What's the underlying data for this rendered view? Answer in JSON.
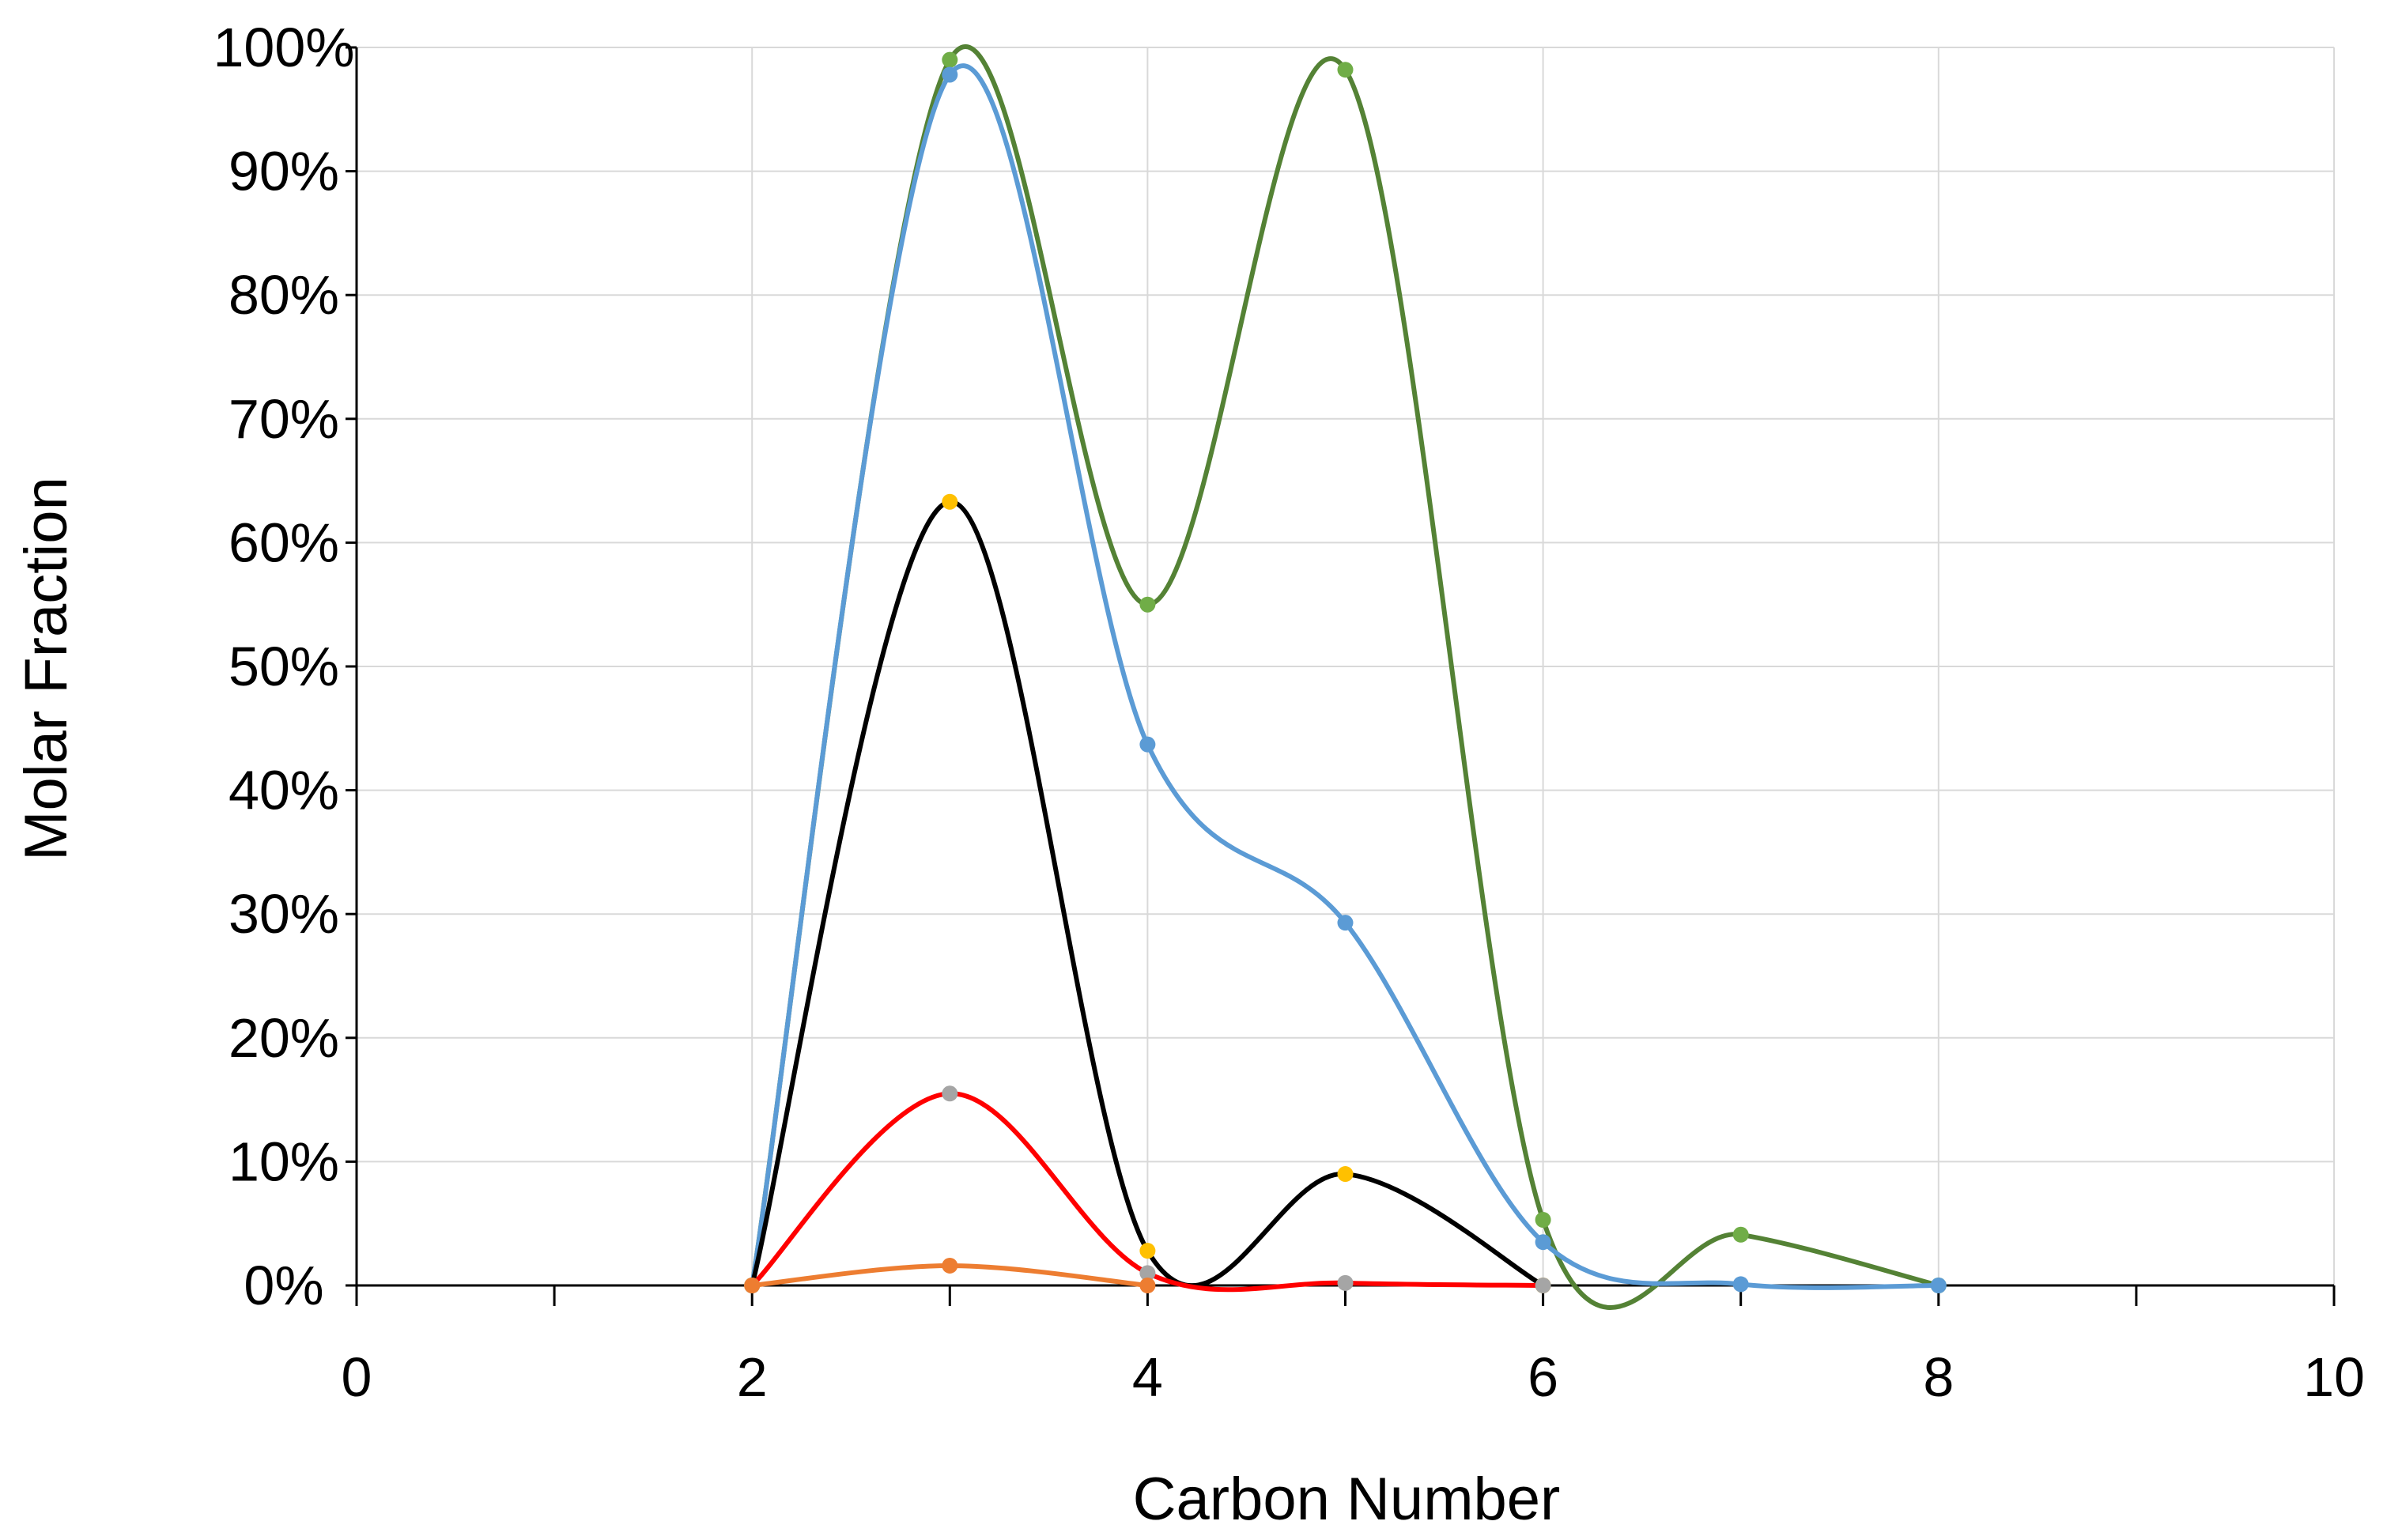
{
  "chart_data": {
    "type": "line",
    "title": "",
    "xlabel": "Carbon Number",
    "ylabel": "Molar Fraction",
    "xlim": [
      0,
      10
    ],
    "ylim": [
      0,
      100
    ],
    "x_ticks": [
      "0",
      "2",
      "4",
      "6",
      "8",
      "10"
    ],
    "y_ticks": [
      "0%",
      "10%",
      "20%",
      "30%",
      "40%",
      "50%",
      "60%",
      "70%",
      "80%",
      "90%",
      "100%"
    ],
    "grid": true,
    "legend": "none",
    "smooth": true,
    "series": [
      {
        "color": "#548235",
        "marker_color": "#70AD47",
        "x": [
          2,
          3,
          4,
          5,
          6,
          7,
          8
        ],
        "values": [
          0,
          99,
          55,
          98.2,
          5.3,
          4.1,
          0
        ]
      },
      {
        "color": "#5B9BD5",
        "marker_color": "#5B9BD5",
        "x": [
          2,
          3,
          4,
          5,
          6,
          7,
          8
        ],
        "values": [
          0,
          97.8,
          43.7,
          29.3,
          3.5,
          0.1,
          0
        ]
      },
      {
        "color": "#000000",
        "marker_color": "#FFC000",
        "x": [
          2,
          3,
          4,
          5,
          6
        ],
        "values": [
          0,
          63.3,
          2.8,
          9,
          0
        ]
      },
      {
        "color": "#FF0000",
        "marker_color": "#A5A5A5",
        "x": [
          2,
          3,
          4,
          5,
          6
        ],
        "values": [
          0,
          15.5,
          1,
          0.2,
          0
        ]
      },
      {
        "color": "#ED7D31",
        "marker_color": "#ED7D31",
        "x": [
          2,
          3,
          4
        ],
        "values": [
          0,
          1.6,
          0
        ]
      }
    ]
  }
}
